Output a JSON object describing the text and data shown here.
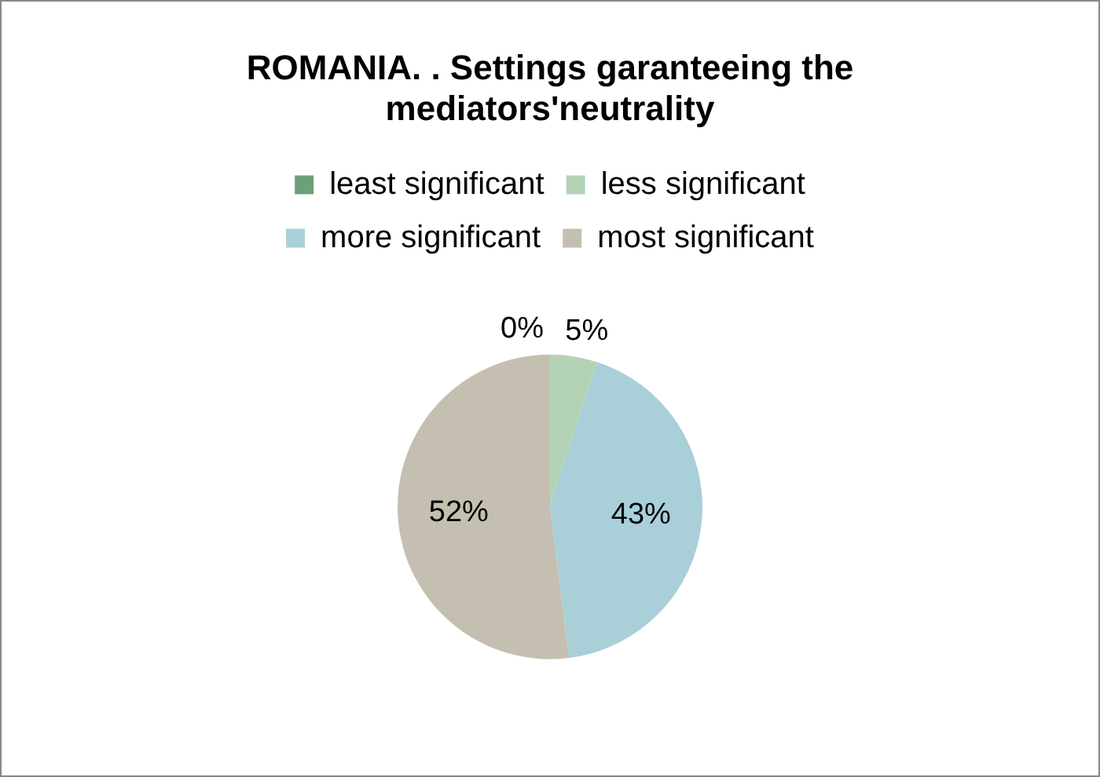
{
  "chart_data": {
    "type": "pie",
    "title": "ROMANIA. . Settings garanteeing the mediators'neutrality",
    "categories": [
      "least significant",
      "less significant",
      "more significant",
      "most significant"
    ],
    "values": [
      0,
      5,
      43,
      52
    ],
    "colors": [
      "#6f9f78",
      "#b3d3b6",
      "#a9cfd9",
      "#c4bfb0"
    ],
    "value_labels": [
      "0%",
      "5%",
      "43%",
      "52%"
    ],
    "legend": "top"
  }
}
